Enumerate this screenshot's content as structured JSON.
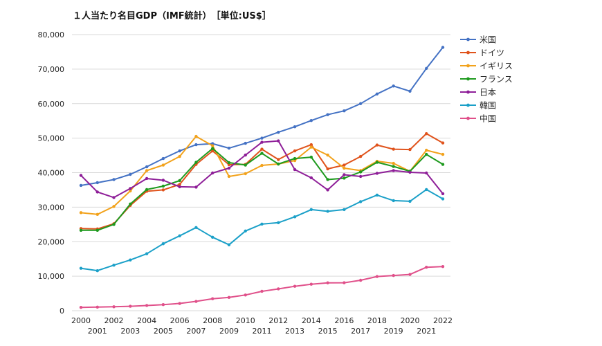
{
  "chart_data": {
    "type": "line",
    "title": "１人当たり名目GDP（IMF統計）　［単位:US$］",
    "xlabel": "",
    "ylabel": "",
    "ylim": [
      0,
      80000
    ],
    "y_ticks": [
      0,
      10000,
      20000,
      30000,
      40000,
      50000,
      60000,
      70000,
      80000
    ],
    "y_tick_labels": [
      "0",
      "10,000",
      "20,000",
      "30,000",
      "40,000",
      "50,000",
      "60,000",
      "70,000",
      "80,000"
    ],
    "x": [
      2000,
      2001,
      2002,
      2003,
      2004,
      2005,
      2006,
      2007,
      2008,
      2009,
      2010,
      2011,
      2012,
      2013,
      2014,
      2015,
      2016,
      2017,
      2018,
      2019,
      2020,
      2021,
      2022
    ],
    "grid": true,
    "legend_position": "right",
    "series": [
      {
        "name": "米国",
        "color": "#4472c4",
        "values": [
          36300,
          37100,
          38000,
          39500,
          41700,
          44100,
          46300,
          48100,
          48400,
          47100,
          48500,
          50000,
          51700,
          53300,
          55100,
          56800,
          57900,
          60000,
          62800,
          65100,
          63600,
          70200,
          76300
        ]
      },
      {
        "name": "ドイツ",
        "color": "#e0531c",
        "values": [
          23800,
          23700,
          25200,
          30500,
          34600,
          35000,
          36600,
          42400,
          46300,
          42300,
          42400,
          46800,
          43800,
          46300,
          48100,
          41100,
          42200,
          44700,
          48000,
          46800,
          46700,
          51300,
          48600
        ]
      },
      {
        "name": "イギリス",
        "color": "#f2a21b",
        "values": [
          28400,
          27900,
          30200,
          34700,
          40600,
          42200,
          44700,
          50500,
          47800,
          38900,
          39700,
          42100,
          42500,
          43500,
          47400,
          45100,
          41300,
          40600,
          43300,
          42700,
          40400,
          46500,
          45300
        ]
      },
      {
        "name": "フランス",
        "color": "#1e9a1e",
        "values": [
          23300,
          23300,
          25000,
          30900,
          35100,
          36100,
          37700,
          43000,
          47000,
          42900,
          42200,
          45600,
          42500,
          44100,
          44500,
          38000,
          38400,
          40200,
          43000,
          41800,
          40400,
          45300,
          42400
        ]
      },
      {
        "name": "日本",
        "color": "#8e1e98",
        "values": [
          39200,
          34400,
          32800,
          35400,
          38300,
          37800,
          35900,
          35800,
          39900,
          41300,
          45100,
          48800,
          49200,
          40900,
          38500,
          35000,
          39400,
          38900,
          39800,
          40600,
          40100,
          39900,
          33900
        ]
      },
      {
        "name": "韓国",
        "color": "#1ba0c8",
        "values": [
          12300,
          11600,
          13200,
          14700,
          16500,
          19400,
          21700,
          24100,
          21300,
          19100,
          23100,
          25100,
          25500,
          27200,
          29300,
          28800,
          29300,
          31600,
          33500,
          31900,
          31700,
          35100,
          32400
        ]
      },
      {
        "name": "中国",
        "color": "#e0508a",
        "values": [
          960,
          1050,
          1150,
          1290,
          1510,
          1760,
          2100,
          2700,
          3470,
          3840,
          4550,
          5620,
          6320,
          7080,
          7680,
          8070,
          8100,
          8820,
          9900,
          10200,
          10500,
          12600,
          12800
        ]
      }
    ]
  }
}
